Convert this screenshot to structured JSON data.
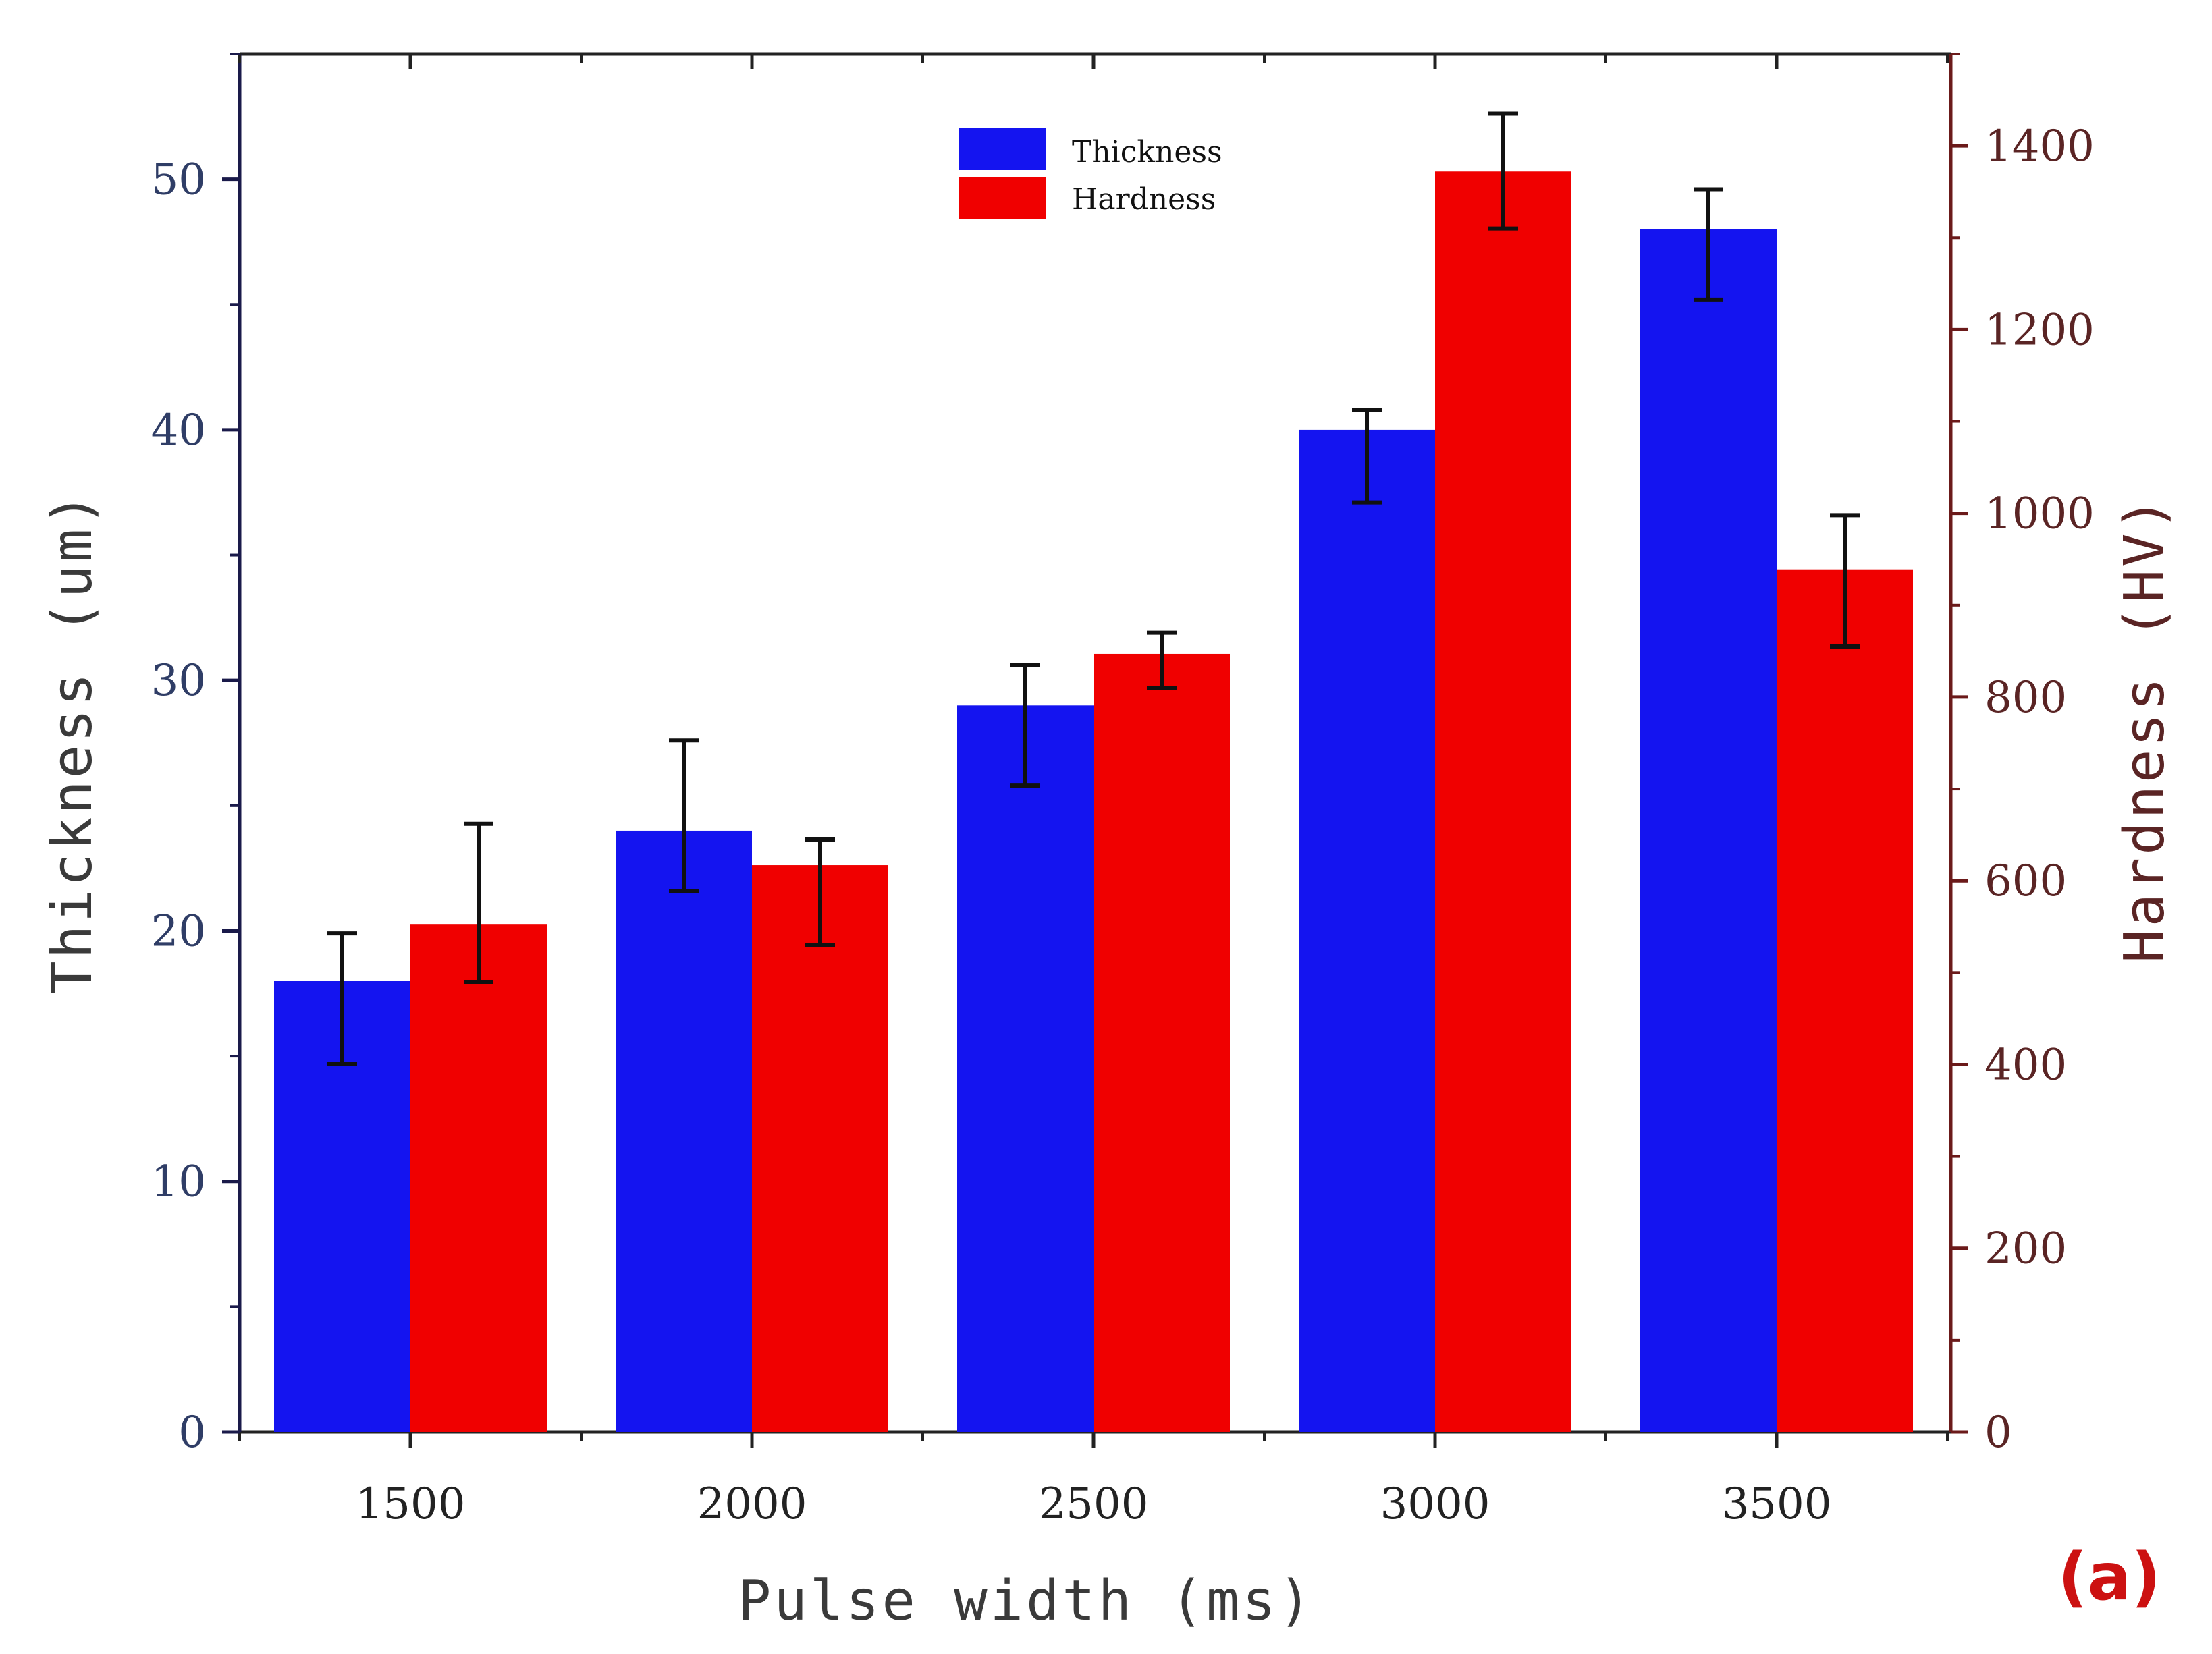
{
  "chart_data": {
    "type": "bar",
    "categories": [
      "1500",
      "2000",
      "2500",
      "3000",
      "3500"
    ],
    "series": [
      {
        "name": "Thickness",
        "axis": "left",
        "color": "#1414f0",
        "values": [
          18,
          24,
          29,
          40,
          48
        ],
        "error_low": [
          14.7,
          21.6,
          25.8,
          37.1,
          45.2
        ],
        "error_high": [
          19.9,
          27.6,
          30.6,
          40.8,
          49.6
        ]
      },
      {
        "name": "Hardness",
        "axis": "right",
        "color": "#f00000",
        "values": [
          553,
          617,
          847,
          1372,
          939
        ],
        "error_low": [
          490,
          530,
          810,
          1310,
          855
        ],
        "error_high": [
          662,
          645,
          870,
          1435,
          998
        ]
      }
    ],
    "xlabel": "Pulse width (ms)",
    "ylabel_left": "Thickness (um)",
    "ylabel_right": "Hardness (HV)",
    "ylim_left": [
      0,
      55
    ],
    "ylim_right": [
      0,
      1500
    ],
    "yticks_left": [
      "0",
      "10",
      "20",
      "30",
      "40",
      "50"
    ],
    "yticks_right": [
      "0",
      "200",
      "400",
      "600",
      "800",
      "1000",
      "1200",
      "1400"
    ],
    "legend": [
      "Thickness",
      "Hardness"
    ],
    "legend_position": "top-center",
    "panel_label": "(a)",
    "left_axis_color": "#1a1a4a",
    "right_axis_color": "#6b1a1a",
    "grid": false
  }
}
